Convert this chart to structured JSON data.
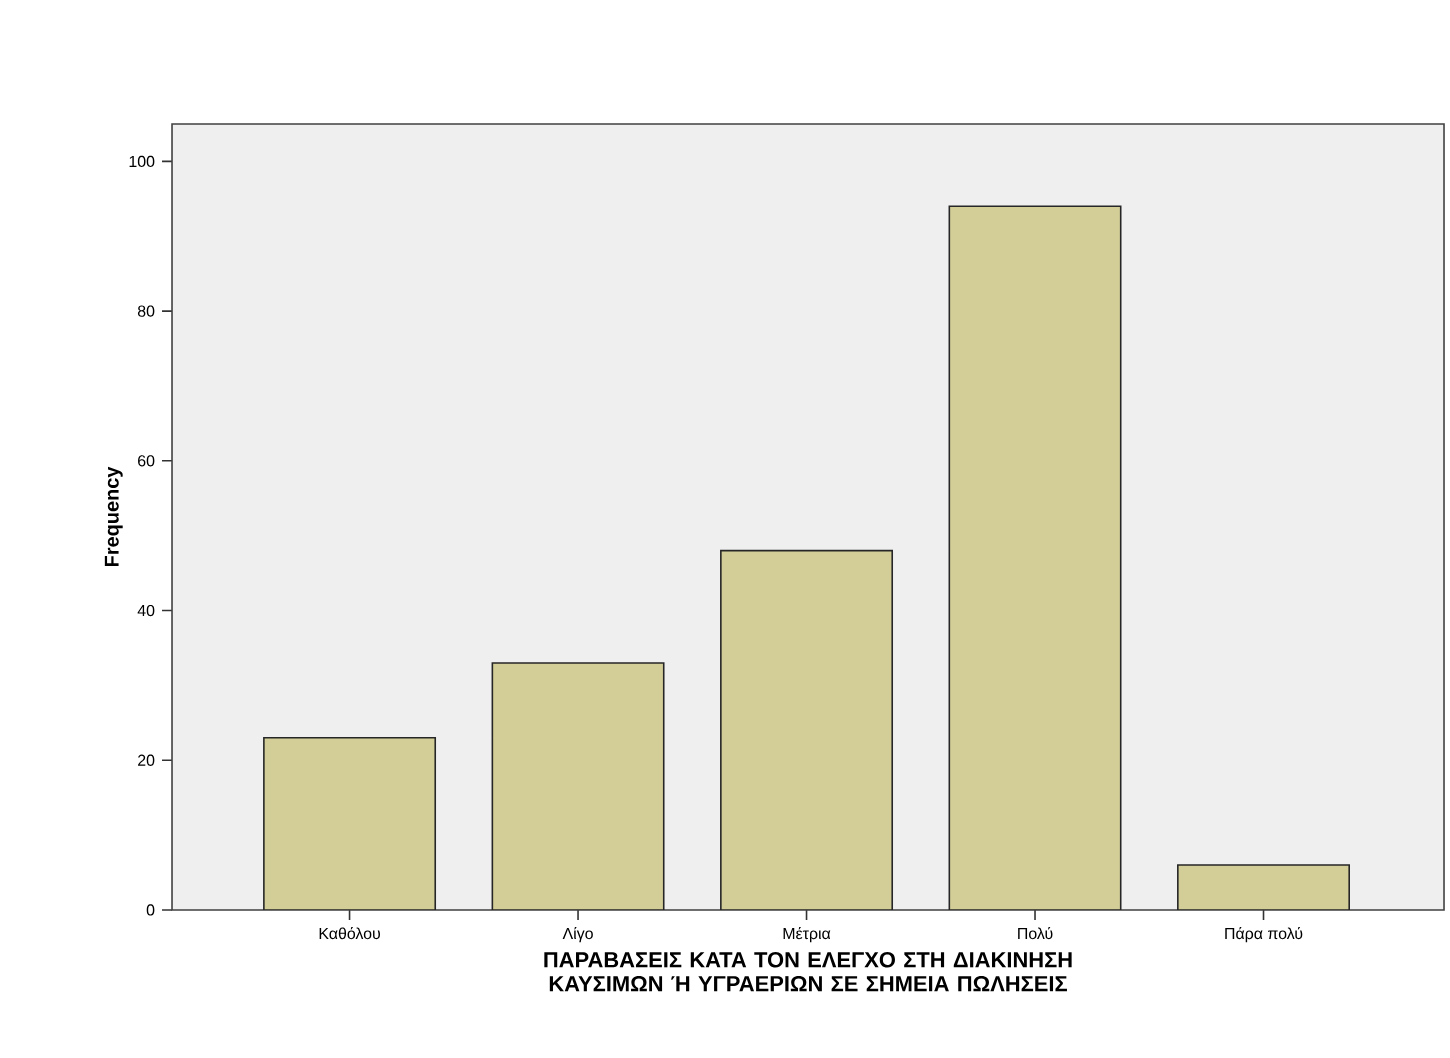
{
  "chart_data": {
    "type": "bar",
    "xlabel": "ΠΑΡΑΒΑΣΕΙΣ ΚΑΤΑ ΤΟΝ ΕΛΕΓΧΟ ΣΤΗ ΔΙΑΚΙΝΗΣΗ ΚΑΥΣΙΜΩΝ Ή ΥΓΡΑΕΡΙΩΝ ΣΕ ΣΗΜΕΙΑ ΠΩΛΗΣΕΙΣ",
    "ylabel": "Frequency",
    "categories": [
      "Καθόλου",
      "Λίγο",
      "Μέτρια",
      "Πολύ",
      "Πάρα πολύ"
    ],
    "values": [
      23,
      33,
      48,
      94,
      6
    ],
    "color": "#d3ce98",
    "ylim": [
      0,
      105
    ],
    "yticks": [
      0,
      20,
      40,
      60,
      80,
      100
    ]
  }
}
